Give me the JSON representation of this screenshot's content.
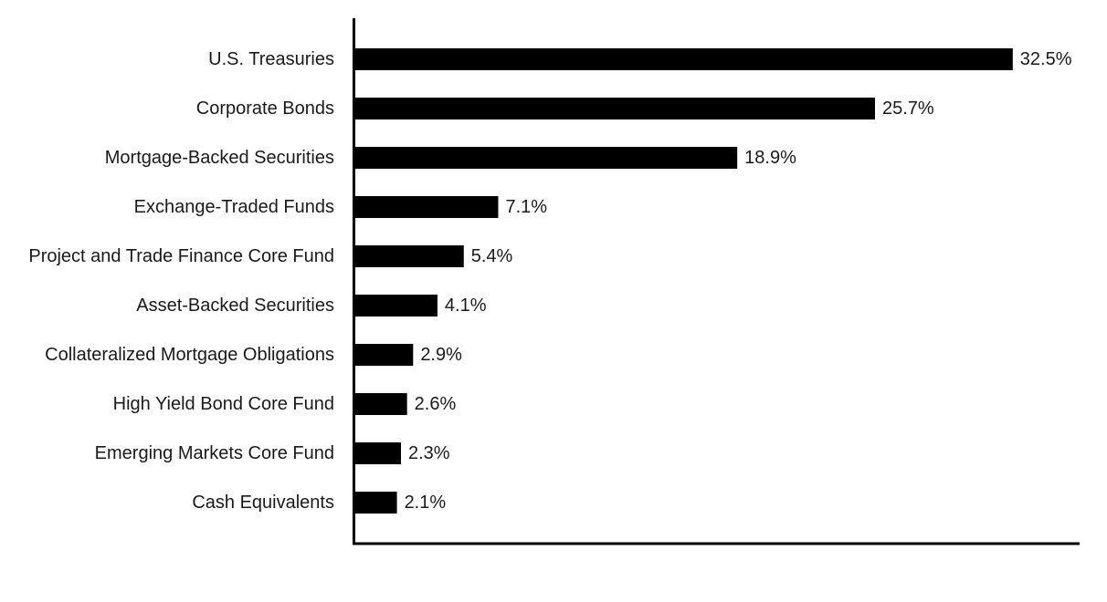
{
  "colors": {
    "bar": "#000000",
    "axis": "#000000",
    "text": "#1a1a1a",
    "background": "#ffffff"
  },
  "chart_data": {
    "type": "bar",
    "orientation": "horizontal",
    "title": "",
    "xlabel": "",
    "ylabel": "",
    "categories": [
      "U.S. Treasuries",
      "Corporate Bonds",
      "Mortgage-Backed Securities",
      "Exchange-Traded Funds",
      "Project and Trade Finance Core Fund",
      "Asset-Backed Securities",
      "Collateralized Mortgage Obligations",
      "High Yield Bond Core Fund",
      "Emerging Markets Core Fund",
      "Cash Equivalents"
    ],
    "values": [
      32.5,
      25.7,
      18.9,
      7.1,
      5.4,
      4.1,
      2.9,
      2.6,
      2.3,
      2.1
    ],
    "value_labels": [
      "32.5%",
      "25.7%",
      "18.9%",
      "7.1%",
      "5.4%",
      "4.1%",
      "2.9%",
      "2.6%",
      "2.3%",
      "2.1%"
    ],
    "unit": "%",
    "xlim": [
      0,
      35.8
    ],
    "grid": false,
    "legend": "none"
  }
}
